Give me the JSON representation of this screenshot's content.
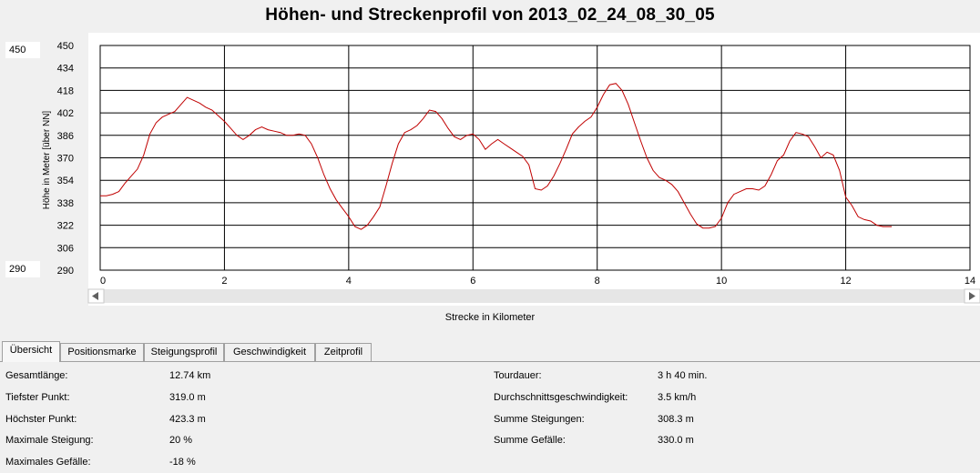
{
  "chart_data": {
    "type": "line",
    "title": "Höhen- und Streckenprofil von 2013_02_24_08_30_05",
    "xlabel": "Strecke in Kilometer",
    "ylabel": "Höhe in Meter [über NN]",
    "xlim": [
      0,
      14
    ],
    "ylim": [
      290,
      450
    ],
    "x_ticks": [
      "0",
      "2",
      "4",
      "6",
      "8",
      "10",
      "12",
      "14"
    ],
    "y_ticks": [
      "450",
      "434",
      "418",
      "402",
      "386",
      "370",
      "354",
      "338",
      "322",
      "306",
      "290"
    ],
    "grid": true,
    "line_color": "#c00000",
    "series": [
      {
        "x": [
          0.0,
          0.1,
          0.2,
          0.3,
          0.4,
          0.5,
          0.6,
          0.7,
          0.8,
          0.9,
          1.0,
          1.1,
          1.2,
          1.3,
          1.4,
          1.5,
          1.6,
          1.7,
          1.8,
          1.9,
          2.0,
          2.1,
          2.2,
          2.3,
          2.4,
          2.5,
          2.6,
          2.7,
          2.8,
          2.9,
          3.0,
          3.1,
          3.2,
          3.3,
          3.4,
          3.5,
          3.6,
          3.7,
          3.8,
          3.9,
          4.0,
          4.1,
          4.2,
          4.3,
          4.4,
          4.5,
          4.6,
          4.7,
          4.8,
          4.9,
          5.0,
          5.1,
          5.2,
          5.3,
          5.4,
          5.5,
          5.6,
          5.7,
          5.8,
          5.9,
          6.0,
          6.1,
          6.2,
          6.3,
          6.4,
          6.5,
          6.6,
          6.7,
          6.8,
          6.9,
          7.0,
          7.1,
          7.2,
          7.3,
          7.4,
          7.5,
          7.6,
          7.7,
          7.8,
          7.9,
          8.0,
          8.1,
          8.2,
          8.3,
          8.4,
          8.5,
          8.6,
          8.7,
          8.8,
          8.9,
          9.0,
          9.1,
          9.2,
          9.3,
          9.4,
          9.5,
          9.6,
          9.7,
          9.8,
          9.9,
          10.0,
          10.1,
          10.2,
          10.3,
          10.4,
          10.5,
          10.6,
          10.7,
          10.8,
          10.9,
          11.0,
          11.1,
          11.2,
          11.3,
          11.4,
          11.5,
          11.6,
          11.7,
          11.8,
          11.9,
          12.0,
          12.1,
          12.2,
          12.3,
          12.4,
          12.5,
          12.6,
          12.7,
          12.74
        ],
        "y": [
          343,
          343,
          344,
          346,
          352,
          357,
          362,
          372,
          387,
          395,
          399,
          401,
          403,
          408,
          413,
          411,
          409,
          406,
          404,
          400,
          396,
          391,
          386,
          383,
          386,
          390,
          392,
          390,
          389,
          388,
          386,
          386,
          387,
          386,
          380,
          370,
          358,
          348,
          340,
          334,
          328,
          321,
          319,
          322,
          328,
          335,
          350,
          366,
          380,
          388,
          390,
          393,
          398,
          404,
          403,
          398,
          391,
          385,
          383,
          386,
          387,
          383,
          376,
          380,
          383,
          380,
          377,
          374,
          371,
          365,
          348,
          347,
          350,
          357,
          366,
          376,
          387,
          392,
          396,
          399,
          406,
          415,
          422,
          423,
          418,
          408,
          395,
          382,
          370,
          361,
          356,
          354,
          351,
          346,
          338,
          330,
          323,
          320,
          320,
          321,
          327,
          338,
          344,
          346,
          348,
          348,
          347,
          350,
          358,
          368,
          372,
          382,
          388,
          387,
          385,
          378,
          370,
          374,
          372,
          361,
          342,
          336,
          328,
          326,
          325,
          322,
          321,
          321,
          321
        ]
      }
    ],
    "range_max_box": "450",
    "range_min_box": "290"
  },
  "tabs": [
    {
      "label": "Übersicht",
      "active": true
    },
    {
      "label": "Positionsmarke",
      "active": false
    },
    {
      "label": "Steigungsprofil",
      "active": false
    },
    {
      "label": "Geschwindigkeit",
      "active": false
    },
    {
      "label": "Zeitprofil",
      "active": false
    }
  ],
  "stats_left": [
    {
      "label": "Gesamtlänge:",
      "value": "12.74 km"
    },
    {
      "label": "Tiefster Punkt:",
      "value": "319.0 m"
    },
    {
      "label": "Höchster Punkt:",
      "value": "423.3 m"
    },
    {
      "label": "Maximale Steigung:",
      "value": "20 %"
    },
    {
      "label": "Maximales Gefälle:",
      "value": "-18 %"
    }
  ],
  "stats_right": [
    {
      "label": "Tourdauer:",
      "value": "3 h 40 min."
    },
    {
      "label": "Durchschnittsgeschwindigkeit:",
      "value": "3.5 km/h"
    },
    {
      "label": "Summe Steigungen:",
      "value": "308.3 m"
    },
    {
      "label": "Summe Gefälle:",
      "value": "330.0 m"
    }
  ]
}
